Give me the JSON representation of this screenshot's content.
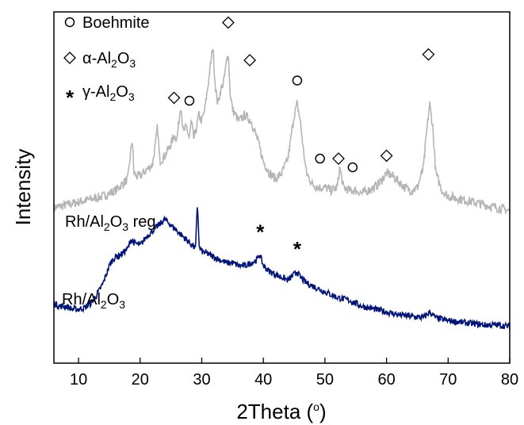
{
  "chart_data": {
    "type": "line",
    "xlabel": "2Theta (",
    "xlabel_sup": "o",
    "xlabel_close": ")",
    "ylabel": "Intensity",
    "xlim": [
      6,
      80
    ],
    "ylim": [
      0,
      100
    ],
    "x_ticks": [
      10,
      20,
      30,
      40,
      50,
      60,
      70,
      80
    ],
    "y_ticks_labeled": false,
    "grid": false,
    "legend": {
      "position": "top-left",
      "entries": [
        {
          "marker": "circle",
          "text": "Boehmite"
        },
        {
          "marker": "diamond",
          "text": "α-Al",
          "sub": "2",
          "text2": "O",
          "sub2": "3"
        },
        {
          "marker": "asterisk",
          "text": "γ-Al",
          "sub": "2",
          "text2": "O",
          "sub2": "3"
        }
      ]
    },
    "series": [
      {
        "label_main": "Rh/Al",
        "label_sub": "2",
        "label_main2": "O",
        "label_sub2": "3",
        "label_tail": " reg",
        "color": "#b5b5b5",
        "x": [
          6,
          8,
          10,
          12,
          14,
          15,
          16,
          17,
          18,
          18.7,
          19,
          19.4,
          20,
          21,
          22,
          22.5,
          22.8,
          23.2,
          24,
          24.5,
          25,
          25.5,
          26,
          26.3,
          26.6,
          27,
          27.5,
          28,
          28.3,
          28.7,
          29,
          29.5,
          30,
          30.5,
          31,
          31.4,
          31.8,
          32.2,
          32.6,
          33,
          33.6,
          34,
          34.3,
          34.6,
          35,
          36,
          37,
          38,
          39,
          40,
          41,
          42,
          43,
          44,
          45,
          45.5,
          46,
          46.5,
          47,
          48,
          49,
          50,
          51,
          52,
          52.4,
          53,
          54,
          55,
          56,
          57,
          58,
          59,
          60,
          61,
          62,
          63,
          64,
          65,
          66,
          66.5,
          67,
          67.5,
          68,
          69,
          70,
          72,
          74,
          76,
          78,
          80
        ],
        "y": [
          46,
          47,
          48,
          49,
          50,
          51,
          52,
          54,
          56,
          70,
          58,
          57,
          57,
          59,
          61,
          68,
          74,
          62,
          64,
          66,
          68,
          71,
          70,
          76,
          82,
          72,
          74,
          70,
          76,
          70,
          72,
          78,
          76,
          80,
          88,
          95,
          102,
          88,
          82,
          86,
          90,
          96,
          100,
          86,
          80,
          76,
          78,
          76,
          70,
          62,
          58,
          56,
          58,
          63,
          78,
          82,
          76,
          66,
          58,
          54,
          53,
          53,
          52,
          53,
          60,
          53,
          52,
          52,
          51,
          52,
          53,
          55,
          58,
          57,
          55,
          53,
          52,
          53,
          60,
          72,
          82,
          74,
          58,
          52,
          50,
          49,
          48,
          47,
          46,
          45
        ]
      },
      {
        "label_main": "Rh/Al",
        "label_sub": "2",
        "label_main2": "O",
        "label_sub2": "3",
        "label_tail": "",
        "color": "#00147a",
        "x": [
          6,
          7,
          8,
          9,
          10,
          11,
          12,
          13,
          14,
          15,
          15.5,
          16,
          17,
          18,
          18.5,
          19,
          20,
          21,
          22,
          23,
          24,
          25,
          26,
          27,
          28,
          29,
          29.3,
          29.6,
          30,
          31,
          32,
          33,
          34,
          35,
          36,
          37,
          38,
          39,
          39.4,
          40,
          41,
          42,
          43,
          44,
          45,
          45.5,
          46,
          47,
          48,
          50,
          52,
          54,
          56,
          58,
          60,
          62,
          64,
          66,
          67,
          68,
          70,
          72,
          74,
          76,
          78,
          80
        ],
        "y": [
          13,
          12,
          12,
          11,
          11,
          11.5,
          13,
          16,
          20,
          26,
          28,
          29,
          30,
          32,
          35,
          34,
          33,
          36,
          38,
          40,
          42,
          40,
          38,
          36,
          34,
          32,
          48,
          32,
          31,
          30,
          29,
          28,
          27,
          27,
          26,
          26,
          27,
          28,
          30,
          26,
          24,
          23,
          22,
          21,
          23,
          24,
          22,
          20,
          19,
          17,
          15,
          14,
          12,
          11,
          10,
          9,
          8.5,
          8,
          10,
          8,
          7,
          6.5,
          6,
          5.5,
          5.5,
          5
        ]
      }
    ],
    "annotations": [
      {
        "marker": "circle",
        "x": 28,
        "y": 83
      },
      {
        "marker": "circle",
        "x": 45.5,
        "y": 90
      },
      {
        "marker": "circle",
        "x": 49.2,
        "y": 63
      },
      {
        "marker": "circle",
        "x": 54.5,
        "y": 60
      },
      {
        "marker": "diamond",
        "x": 25.5,
        "y": 84
      },
      {
        "marker": "diamond",
        "x": 34.3,
        "y": 110
      },
      {
        "marker": "diamond",
        "x": 37.8,
        "y": 97
      },
      {
        "marker": "diamond",
        "x": 52.2,
        "y": 63
      },
      {
        "marker": "diamond",
        "x": 60,
        "y": 64
      },
      {
        "marker": "diamond",
        "x": 66.8,
        "y": 99
      },
      {
        "marker": "asterisk",
        "x": 39.5,
        "y": 38
      },
      {
        "marker": "asterisk",
        "x": 45.5,
        "y": 32
      }
    ]
  }
}
